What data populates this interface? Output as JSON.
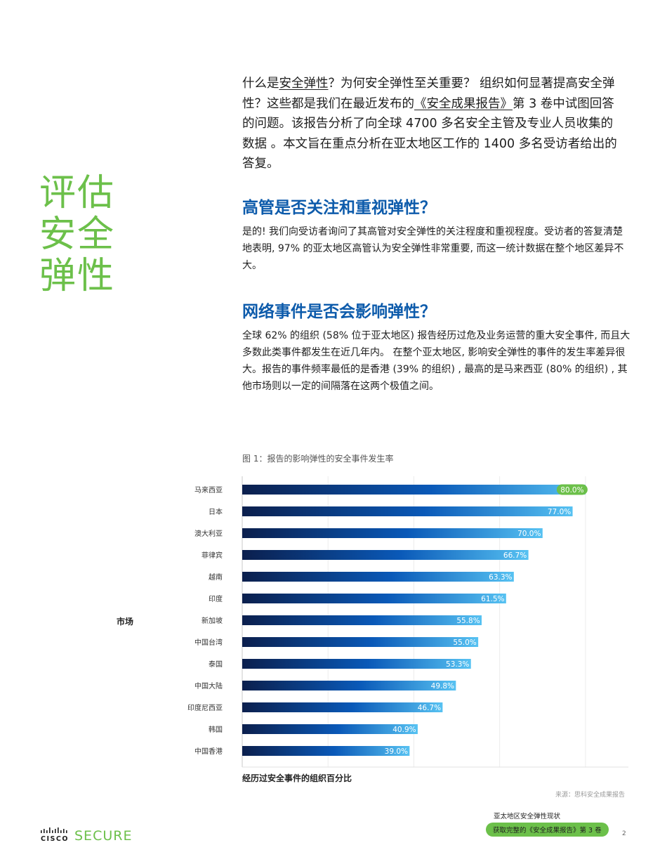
{
  "side_title": [
    "评估",
    "安全",
    "弹性"
  ],
  "intro": {
    "part1": "什么是",
    "link1": "安全弹性",
    "part2": "？为何安全弹性至关重要？ 组织如何显著提高安全弹性？这些都是我们在最近发布的",
    "link2": "《安全成果报告》",
    "part3": "第 3 卷中试图回答的问题。该报告分析了向全球 4700 多名安全主管及专业人员收集的数据 。本文旨在重点分析在亚太地区工作的 1400 多名受访者给出的答复。"
  },
  "section1": {
    "heading": "高管是否关注和重视弹性？",
    "body": "是的! 我们向受访者询问了其高管对安全弹性的关注程度和重视程度。受访者的答复清楚地表明, 97% 的亚太地区高管认为安全弹性非常重要, 而这一统计数据在整个地区差异不大。"
  },
  "section2": {
    "heading": "网络事件是否会影响弹性？",
    "body": "全球 62% 的组织 (58% 位于亚太地区) 报告经历过危及业务运营的重大安全事件, 而且大多数此类事件都发生在近几年内。 在整个亚太地区, 影响安全弹性的事件的发生率差异很大。报告的事件频率最低的是香港 (39% 的组织) , 最高的是马来西亚 (80% 的组织) , 其他市场则以一定的间隔落在这两个极值之间。"
  },
  "figure_caption": "图 1：报告的影响弹性的安全事件发生率",
  "chart_data": {
    "type": "bar",
    "orientation": "horizontal",
    "categories": [
      "马来西亚",
      "日本",
      "澳大利亚",
      "菲律宾",
      "越南",
      "印度",
      "新加坡",
      "中国台湾",
      "泰国",
      "中国大陆",
      "印度尼西亚",
      "韩国",
      "中国香港"
    ],
    "values": [
      80.0,
      77.0,
      70.0,
      66.7,
      63.3,
      61.5,
      55.8,
      55.0,
      53.3,
      49.8,
      46.7,
      40.9,
      39.0
    ],
    "value_labels": [
      "80.0%",
      "77.0%",
      "70.0%",
      "66.7%",
      "63.3%",
      "61.5%",
      "55.8%",
      "55.0%",
      "53.3%",
      "49.8%",
      "46.7%",
      "40.9%",
      "39.0%"
    ],
    "xlabel": "经历过安全事件的组织百分比",
    "ylabel": "市场",
    "xlim": [
      0,
      90
    ],
    "grid": true,
    "colors": {
      "bar_start": "#0b1f4d",
      "bar_mid": "#0a59b8",
      "bar_end": "#57c2f2",
      "label_bg": "#6cc04a"
    }
  },
  "source": "来源：思科安全成果报告",
  "footer": {
    "brand_cisco": "CISCO",
    "brand_secure": "SECURE",
    "note": "亚太地区安全弹性现状",
    "button": "获取完整的《安全成果报告》第 3 卷",
    "page": "2"
  },
  "colors": {
    "green": "#6cc04a",
    "blue_heading": "#0d5bab"
  }
}
